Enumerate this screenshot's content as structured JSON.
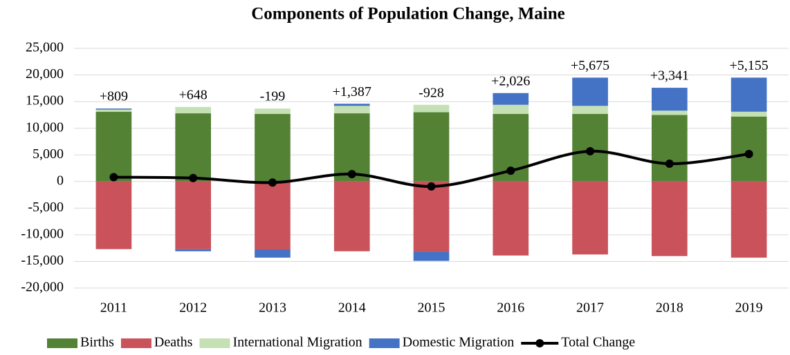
{
  "chart_data": {
    "type": "bar",
    "title": "Components of Population Change, Maine",
    "categories": [
      "2011",
      "2012",
      "2013",
      "2014",
      "2015",
      "2016",
      "2017",
      "2018",
      "2019"
    ],
    "series": [
      {
        "name": "Births",
        "type": "bar",
        "color": "#548235",
        "values": [
          13100,
          12800,
          12700,
          12800,
          13000,
          12700,
          12700,
          12500,
          12200
        ]
      },
      {
        "name": "Deaths",
        "type": "bar",
        "color": "#c9525b",
        "values": [
          -12700,
          -12700,
          -12800,
          -13100,
          -13200,
          -13900,
          -13700,
          -14000,
          -14300
        ]
      },
      {
        "name": "International Migration",
        "type": "bar",
        "color": "#c5e0b4",
        "values": [
          400,
          1200,
          1000,
          1400,
          1400,
          1700,
          1500,
          800,
          900
        ]
      },
      {
        "name": "Domestic Migration",
        "type": "bar",
        "color": "#4472c4",
        "values": [
          200,
          -400,
          -1500,
          400,
          -1700,
          2200,
          5300,
          4300,
          6400
        ]
      },
      {
        "name": "Total Change",
        "type": "line",
        "color": "#000000",
        "values": [
          809,
          648,
          -199,
          1387,
          -928,
          2026,
          5675,
          3341,
          5155
        ],
        "value_labels": [
          "+809",
          "+648",
          "-199",
          "+1,387",
          "-928",
          "+2,026",
          "+5,675",
          "+3,341",
          "+5,155"
        ]
      }
    ],
    "ylim": [
      -20000,
      25000
    ],
    "yticks": [
      {
        "value": -20000,
        "label": "-20,000"
      },
      {
        "value": -15000,
        "label": "-15,000"
      },
      {
        "value": -10000,
        "label": "-10,000"
      },
      {
        "value": -5000,
        "label": "-5,000"
      },
      0,
      {
        "value": 5000,
        "label": "5,000"
      },
      {
        "value": 10000,
        "label": "10,000"
      },
      {
        "value": 15000,
        "label": "15,000"
      },
      {
        "value": 20000,
        "label": "20,000"
      },
      {
        "value": 25000,
        "label": "25,000"
      }
    ],
    "grid": true,
    "legend": "bottom"
  }
}
